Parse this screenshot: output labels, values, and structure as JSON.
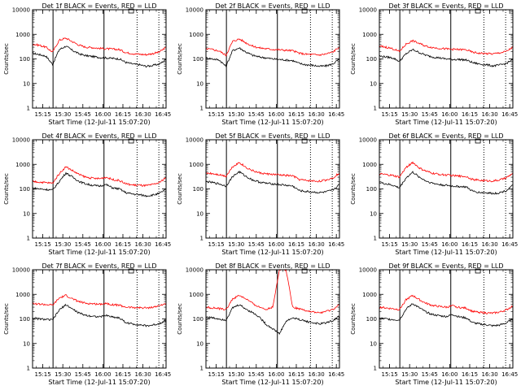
{
  "chart_data": [
    {
      "type": "line",
      "title": "Det 1f BLACK = Events, RED = LLD",
      "xlabel": "Start Time (12-Jul-11 15:07:20)",
      "ylabel": "Counts/sec",
      "yscale": "log",
      "ylim": [
        1,
        10000
      ],
      "ytick_labels": [
        "1",
        "10",
        "100",
        "1000",
        "10000"
      ],
      "xtick_labels": [
        "15:15",
        "15:30",
        "15:45",
        "16:00",
        "16:15",
        "16:30",
        "16:45"
      ],
      "x_minutes": [
        0,
        5,
        10,
        15,
        20,
        25,
        30,
        35,
        40,
        45,
        50,
        55,
        60,
        65,
        70,
        75,
        80,
        85,
        90,
        95,
        100
      ],
      "series": [
        {
          "color": "#000000",
          "values": [
            170,
            150,
            130,
            60,
            240,
            330,
            220,
            160,
            135,
            125,
            115,
            110,
            105,
            100,
            72,
            62,
            58,
            50,
            54,
            62,
            95
          ]
        },
        {
          "color": "#ff0000",
          "values": [
            400,
            360,
            300,
            190,
            580,
            700,
            500,
            360,
            300,
            290,
            270,
            260,
            250,
            240,
            180,
            165,
            155,
            150,
            165,
            190,
            300
          ]
        }
      ],
      "vlines_solid": [
        15.33,
        53.5
      ],
      "vlines_dotted": [
        78.3,
        94.6
      ],
      "legend_box": true
    },
    {
      "type": "line",
      "title": "Det 2f BLACK = Events, RED = LLD",
      "xlabel": "Start Time (12-Jul-11 15:07:20)",
      "ylabel": "Counts/sec",
      "yscale": "log",
      "ylim": [
        1,
        10000
      ],
      "ytick_labels": [
        "1",
        "10",
        "100",
        "1000",
        "10000"
      ],
      "xtick_labels": [
        "15:15",
        "15:30",
        "15:45",
        "16:00",
        "16:15",
        "16:30",
        "16:45"
      ],
      "x_minutes": [
        0,
        5,
        10,
        15,
        20,
        25,
        30,
        35,
        40,
        45,
        50,
        55,
        60,
        65,
        70,
        75,
        80,
        85,
        90,
        95,
        100
      ],
      "series": [
        {
          "color": "#000000",
          "values": [
            110,
            100,
            90,
            50,
            220,
            280,
            190,
            140,
            120,
            110,
            100,
            95,
            90,
            85,
            65,
            58,
            55,
            50,
            52,
            62,
            100
          ]
        },
        {
          "color": "#ff0000",
          "values": [
            260,
            240,
            210,
            140,
            520,
            650,
            450,
            330,
            280,
            260,
            245,
            235,
            225,
            215,
            170,
            155,
            150,
            145,
            160,
            190,
            310
          ]
        }
      ],
      "vlines_solid": [
        15.33,
        53.5
      ],
      "vlines_dotted": [
        78.3,
        94.6
      ],
      "legend_box": true
    },
    {
      "type": "line",
      "title": "Det 3f BLACK = Events, RED = LLD",
      "xlabel": "Start Time (12-Jul-11 15:07:20)",
      "ylabel": "Counts/sec",
      "yscale": "log",
      "ylim": [
        1,
        10000
      ],
      "ytick_labels": [
        "1",
        "10",
        "100",
        "1000",
        "10000"
      ],
      "xtick_labels": [
        "15:15",
        "15:30",
        "15:45",
        "16:00",
        "16:15",
        "16:30",
        "16:45"
      ],
      "x_minutes": [
        0,
        5,
        10,
        15,
        20,
        25,
        30,
        35,
        40,
        45,
        50,
        55,
        60,
        65,
        70,
        75,
        80,
        85,
        90,
        95,
        100
      ],
      "series": [
        {
          "color": "#000000",
          "values": [
            130,
            120,
            110,
            80,
            160,
            240,
            180,
            140,
            120,
            110,
            100,
            95,
            95,
            90,
            70,
            62,
            58,
            52,
            56,
            65,
            95
          ]
        },
        {
          "color": "#ff0000",
          "values": [
            330,
            300,
            260,
            200,
            400,
            550,
            420,
            330,
            290,
            270,
            255,
            245,
            240,
            235,
            185,
            170,
            165,
            160,
            175,
            200,
            300
          ]
        }
      ],
      "vlines_solid": [
        15.33,
        53.5
      ],
      "vlines_dotted": [
        78.3,
        94.6
      ],
      "legend_box": true
    },
    {
      "type": "line",
      "title": "Det 4f BLACK = Events, RED = LLD",
      "xlabel": "Start Time (12-Jul-11 15:07:20)",
      "ylabel": "Counts/sec",
      "yscale": "log",
      "ylim": [
        1,
        10000
      ],
      "ytick_labels": [
        "1",
        "10",
        "100",
        "1000",
        "10000"
      ],
      "xtick_labels": [
        "15:15",
        "15:30",
        "15:45",
        "16:00",
        "16:15",
        "16:30",
        "16:45"
      ],
      "x_minutes": [
        0,
        5,
        10,
        15,
        20,
        25,
        30,
        35,
        40,
        45,
        50,
        55,
        60,
        65,
        70,
        75,
        80,
        85,
        90,
        95,
        100
      ],
      "series": [
        {
          "color": "#000000",
          "values": [
            110,
            100,
            95,
            90,
            200,
            450,
            300,
            200,
            160,
            140,
            130,
            150,
            110,
            100,
            70,
            62,
            58,
            52,
            56,
            65,
            100
          ]
        },
        {
          "color": "#ff0000",
          "values": [
            200,
            190,
            180,
            170,
            420,
            800,
            550,
            380,
            300,
            270,
            260,
            300,
            240,
            220,
            160,
            145,
            140,
            135,
            150,
            180,
            300
          ]
        }
      ],
      "vlines_solid": [
        15.33,
        53.5
      ],
      "vlines_dotted": [
        78.3,
        94.6
      ],
      "legend_box": true
    },
    {
      "type": "line",
      "title": "Det 5f BLACK = Events, RED = LLD",
      "xlabel": "Start Time (12-Jul-11 15:07:20)",
      "ylabel": "Counts/sec",
      "yscale": "log",
      "ylim": [
        1,
        10000
      ],
      "ytick_labels": [
        "1",
        "10",
        "100",
        "1000",
        "10000"
      ],
      "xtick_labels": [
        "15:15",
        "15:30",
        "15:45",
        "16:00",
        "16:15",
        "16:30",
        "16:45"
      ],
      "x_minutes": [
        0,
        5,
        10,
        15,
        20,
        25,
        30,
        35,
        40,
        45,
        50,
        55,
        60,
        65,
        70,
        75,
        80,
        85,
        90,
        95,
        100
      ],
      "series": [
        {
          "color": "#000000",
          "values": [
            200,
            180,
            160,
            130,
            320,
            500,
            320,
            230,
            190,
            170,
            160,
            150,
            140,
            130,
            85,
            78,
            75,
            70,
            75,
            90,
            150
          ]
        },
        {
          "color": "#ff0000",
          "values": [
            450,
            420,
            380,
            330,
            800,
            1200,
            750,
            550,
            450,
            410,
            390,
            370,
            350,
            340,
            240,
            220,
            210,
            205,
            230,
            280,
            450
          ]
        }
      ],
      "vlines_solid": [
        15.33,
        53.5
      ],
      "vlines_dotted": [
        78.3,
        94.6
      ],
      "legend_box": true
    },
    {
      "type": "line",
      "title": "Det 6f BLACK = Events, RED = LLD",
      "xlabel": "Start Time (12-Jul-11 15:07:20)",
      "ylabel": "Counts/sec",
      "yscale": "log",
      "ylim": [
        1,
        10000
      ],
      "ytick_labels": [
        "1",
        "10",
        "100",
        "1000",
        "10000"
      ],
      "xtick_labels": [
        "15:15",
        "15:30",
        "15:45",
        "16:00",
        "16:15",
        "16:30",
        "16:45"
      ],
      "x_minutes": [
        0,
        5,
        10,
        15,
        20,
        25,
        30,
        35,
        40,
        45,
        50,
        55,
        60,
        65,
        70,
        75,
        80,
        85,
        90,
        95,
        100
      ],
      "series": [
        {
          "color": "#000000",
          "values": [
            180,
            160,
            140,
            110,
            280,
            480,
            300,
            210,
            170,
            150,
            140,
            130,
            125,
            120,
            80,
            72,
            70,
            65,
            70,
            85,
            140
          ]
        },
        {
          "color": "#ff0000",
          "values": [
            400,
            380,
            350,
            300,
            750,
            1200,
            700,
            520,
            430,
            390,
            370,
            350,
            330,
            320,
            240,
            225,
            215,
            210,
            230,
            280,
            430
          ]
        }
      ],
      "vlines_solid": [
        15.33,
        53.5
      ],
      "vlines_dotted": [
        78.3,
        94.6
      ],
      "legend_box": true
    },
    {
      "type": "line",
      "title": "Det 7f BLACK = Events, RED = LLD",
      "xlabel": "Start Time (12-Jul-11 15:07:20)",
      "ylabel": "Counts/sec",
      "yscale": "log",
      "ylim": [
        1,
        10000
      ],
      "ytick_labels": [
        "1",
        "10",
        "100",
        "1000",
        "10000"
      ],
      "xtick_labels": [
        "15:15",
        "15:30",
        "15:45",
        "16:00",
        "16:15",
        "16:30",
        "16:45"
      ],
      "x_minutes": [
        0,
        5,
        10,
        15,
        20,
        25,
        30,
        35,
        40,
        45,
        50,
        55,
        60,
        65,
        70,
        75,
        80,
        85,
        90,
        95,
        100
      ],
      "series": [
        {
          "color": "#000000",
          "values": [
            110,
            100,
            95,
            90,
            230,
            380,
            250,
            170,
            140,
            130,
            120,
            140,
            120,
            110,
            70,
            62,
            58,
            52,
            56,
            65,
            90
          ]
        },
        {
          "color": "#ff0000",
          "values": [
            420,
            400,
            380,
            360,
            700,
            900,
            650,
            500,
            430,
            410,
            400,
            430,
            380,
            360,
            300,
            290,
            285,
            280,
            300,
            340,
            430
          ]
        }
      ],
      "vlines_solid": [
        15.33,
        53.5
      ],
      "vlines_dotted": [
        78.3,
        94.6
      ],
      "legend_box": true
    },
    {
      "type": "line",
      "title": "Det 8f BLACK = Events, RED = LLD",
      "xlabel": "Start Time (12-Jul-11 15:07:20)",
      "ylabel": "Counts/sec",
      "yscale": "log",
      "ylim": [
        1,
        10000
      ],
      "ytick_labels": [
        "1",
        "10",
        "100",
        "1000",
        "10000"
      ],
      "xtick_labels": [
        "15:15",
        "15:30",
        "15:45",
        "16:00",
        "16:15",
        "16:30",
        "16:45"
      ],
      "x_minutes": [
        0,
        5,
        10,
        15,
        20,
        25,
        30,
        35,
        40,
        45,
        50,
        55,
        60,
        65,
        70,
        75,
        80,
        85,
        90,
        95,
        100
      ],
      "series": [
        {
          "color": "#000000",
          "values": [
            120,
            110,
            100,
            90,
            280,
            380,
            250,
            180,
            120,
            60,
            40,
            25,
            80,
            110,
            95,
            80,
            70,
            62,
            70,
            85,
            130
          ]
        },
        {
          "color": "#ff0000",
          "values": [
            300,
            280,
            260,
            240,
            650,
            900,
            650,
            420,
            300,
            250,
            300,
            10000,
            10000,
            300,
            260,
            220,
            190,
            175,
            200,
            240,
            380
          ]
        }
      ],
      "vlines_solid": [
        15.33,
        53.5
      ],
      "vlines_dotted": [
        78.3,
        94.6
      ],
      "legend_box": true
    },
    {
      "type": "line",
      "title": "Det 9f BLACK = Events, RED = LLD",
      "xlabel": "Start Time (12-Jul-11 15:07:20)",
      "ylabel": "Counts/sec",
      "yscale": "log",
      "ylim": [
        1,
        10000
      ],
      "ytick_labels": [
        "1",
        "10",
        "100",
        "1000",
        "10000"
      ],
      "xtick_labels": [
        "15:15",
        "15:30",
        "15:45",
        "16:00",
        "16:15",
        "16:30",
        "16:45"
      ],
      "x_minutes": [
        0,
        5,
        10,
        15,
        20,
        25,
        30,
        35,
        40,
        45,
        50,
        55,
        60,
        65,
        70,
        75,
        80,
        85,
        90,
        95,
        100
      ],
      "series": [
        {
          "color": "#000000",
          "values": [
            110,
            100,
            95,
            90,
            250,
            420,
            280,
            190,
            150,
            135,
            125,
            150,
            120,
            110,
            70,
            62,
            58,
            52,
            56,
            68,
            100
          ]
        },
        {
          "color": "#ff0000",
          "values": [
            300,
            280,
            260,
            240,
            600,
            900,
            600,
            430,
            350,
            320,
            300,
            340,
            290,
            275,
            200,
            185,
            175,
            170,
            190,
            230,
            340
          ]
        }
      ],
      "vlines_solid": [
        15.33,
        53.5
      ],
      "vlines_dotted": [
        78.3,
        94.6
      ],
      "legend_box": true
    }
  ]
}
